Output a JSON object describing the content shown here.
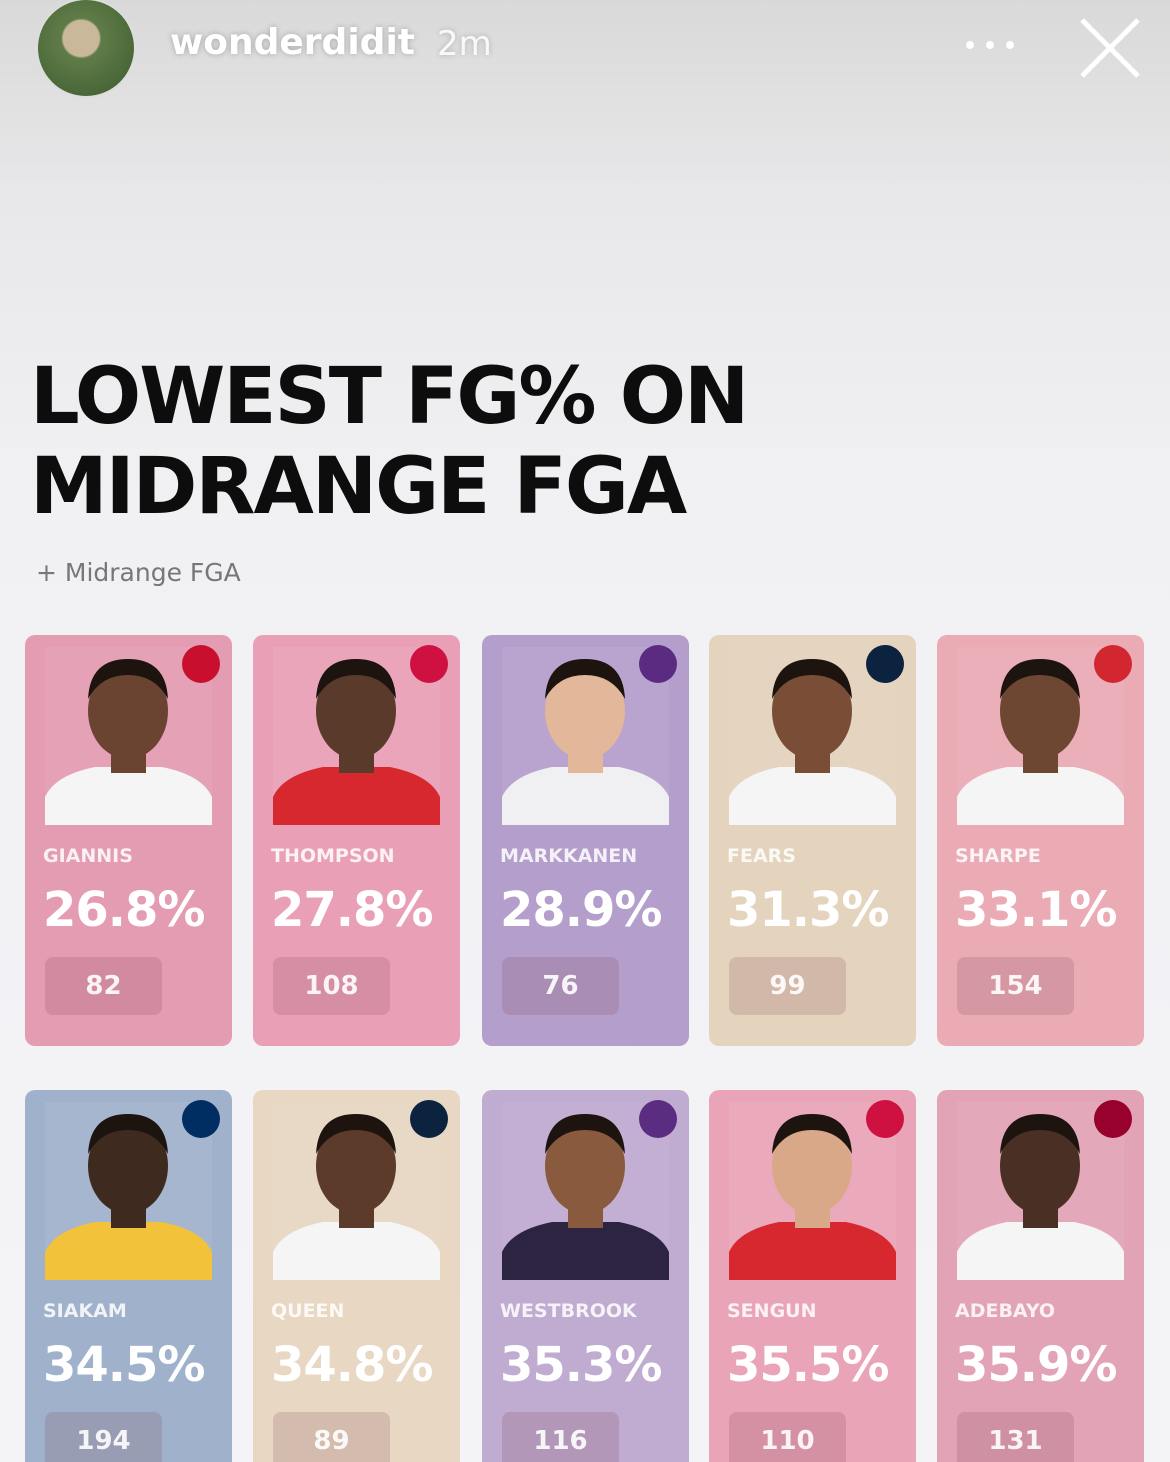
{
  "header": {
    "username": "wonderdidit",
    "time": "2m"
  },
  "title": [
    "LOWEST FG% ON",
    "MIDRANGE FGA"
  ],
  "subtitle": "+ Midrange FGA",
  "cards": [
    {
      "name": "GIANNIS",
      "pct": "26.8%",
      "fga": "82"
    },
    {
      "name": "THOMPSON",
      "pct": "27.8%",
      "fga": "108"
    },
    {
      "name": "MARKKANEN",
      "pct": "28.9%",
      "fga": "76"
    },
    {
      "name": "FEARS",
      "pct": "31.3%",
      "fga": "99"
    },
    {
      "name": "SHARPE",
      "pct": "33.1%",
      "fga": "154"
    },
    {
      "name": "SIAKAM",
      "pct": "34.5%",
      "fga": "194"
    },
    {
      "name": "QUEEN",
      "pct": "34.8%",
      "fga": "89"
    },
    {
      "name": "WESTBROOK",
      "pct": "35.3%",
      "fga": "116"
    },
    {
      "name": "SENGUN",
      "pct": "35.5%",
      "fga": "110"
    },
    {
      "name": "ADEBAYO",
      "pct": "35.9%",
      "fga": "131"
    }
  ]
}
